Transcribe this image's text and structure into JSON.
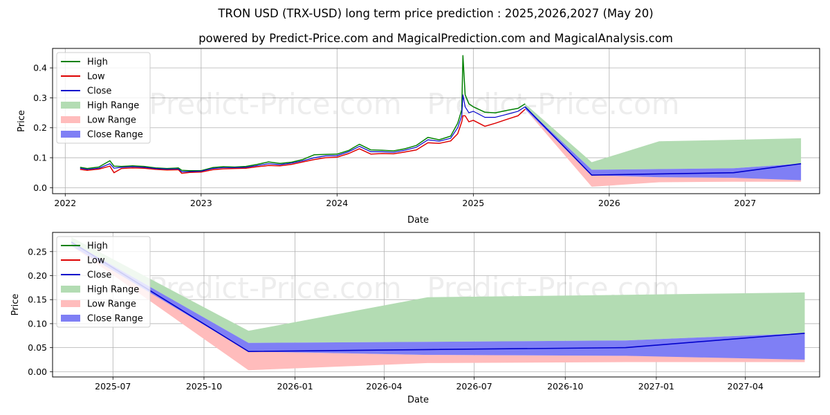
{
  "header": {
    "title": "TRON USD (TRX-USD) long term price prediction : 2025,2026,2027 (May 20)",
    "subtitle": "powered by Predict-Price.com and MagicalPrediction.com and MagicalAnalysis.com"
  },
  "watermark": "Predict-Price.com",
  "colors": {
    "high": "#008000",
    "low": "#dd0000",
    "close": "#0000cc",
    "high_range": "#b3dcb3",
    "low_range": "#ffbcbc",
    "close_range": "#7f7ff5",
    "grid": "#b0b0b0"
  },
  "chart_data": [
    {
      "type": "line",
      "panel": "top",
      "xlabel": "Date",
      "ylabel": "Price",
      "xlim": [
        "2021-11-28",
        "2027-07-20"
      ],
      "ylim": [
        -0.02,
        0.465
      ],
      "x_ticks": [
        "2022-01-01",
        "2023-01-01",
        "2024-01-01",
        "2025-01-01",
        "2026-01-01",
        "2027-01-01"
      ],
      "x_tick_labels": [
        "2022",
        "2023",
        "2024",
        "2025",
        "2026",
        "2027"
      ],
      "y_ticks": [
        0.0,
        0.1,
        0.2,
        0.3,
        0.4
      ],
      "y_tick_labels": [
        "0.0",
        "0.1",
        "0.2",
        "0.3",
        "0.4"
      ],
      "grid": true,
      "legend": "upper-left",
      "legend_entries": [
        "High",
        "Low",
        "Close",
        "High Range",
        "Low Range",
        "Close Range"
      ],
      "history": {
        "dates": [
          "2022-02-10",
          "2022-03-01",
          "2022-04-01",
          "2022-05-01",
          "2022-05-12",
          "2022-06-01",
          "2022-07-01",
          "2022-08-01",
          "2022-09-01",
          "2022-10-01",
          "2022-11-01",
          "2022-11-10",
          "2022-12-01",
          "2023-01-01",
          "2023-02-01",
          "2023-03-01",
          "2023-04-01",
          "2023-05-01",
          "2023-06-01",
          "2023-07-01",
          "2023-08-01",
          "2023-09-01",
          "2023-10-01",
          "2023-11-01",
          "2023-12-01",
          "2024-01-01",
          "2024-02-01",
          "2024-03-01",
          "2024-04-01",
          "2024-05-01",
          "2024-06-01",
          "2024-07-01",
          "2024-08-01",
          "2024-09-01",
          "2024-10-01",
          "2024-11-01",
          "2024-11-20",
          "2024-12-01",
          "2024-12-04",
          "2024-12-10",
          "2024-12-20",
          "2025-01-01",
          "2025-02-01",
          "2025-03-01",
          "2025-04-01",
          "2025-05-01",
          "2025-05-20"
        ],
        "close": [
          0.065,
          0.061,
          0.065,
          0.08,
          0.065,
          0.068,
          0.07,
          0.068,
          0.064,
          0.062,
          0.063,
          0.053,
          0.054,
          0.055,
          0.064,
          0.067,
          0.067,
          0.068,
          0.074,
          0.08,
          0.077,
          0.082,
          0.09,
          0.1,
          0.106,
          0.107,
          0.12,
          0.138,
          0.12,
          0.12,
          0.118,
          0.125,
          0.135,
          0.16,
          0.155,
          0.165,
          0.2,
          0.24,
          0.31,
          0.27,
          0.25,
          0.255,
          0.235,
          0.235,
          0.245,
          0.255,
          0.27
        ],
        "high": [
          0.068,
          0.064,
          0.069,
          0.09,
          0.072,
          0.071,
          0.073,
          0.071,
          0.066,
          0.064,
          0.066,
          0.058,
          0.057,
          0.057,
          0.067,
          0.07,
          0.069,
          0.071,
          0.078,
          0.086,
          0.081,
          0.085,
          0.094,
          0.11,
          0.111,
          0.112,
          0.124,
          0.145,
          0.126,
          0.125,
          0.123,
          0.13,
          0.141,
          0.168,
          0.16,
          0.172,
          0.215,
          0.26,
          0.441,
          0.31,
          0.28,
          0.27,
          0.252,
          0.25,
          0.258,
          0.265,
          0.28
        ],
        "low": [
          0.061,
          0.058,
          0.062,
          0.072,
          0.05,
          0.064,
          0.066,
          0.065,
          0.061,
          0.059,
          0.06,
          0.048,
          0.051,
          0.052,
          0.06,
          0.063,
          0.064,
          0.065,
          0.07,
          0.074,
          0.073,
          0.078,
          0.086,
          0.094,
          0.1,
          0.102,
          0.114,
          0.13,
          0.112,
          0.114,
          0.113,
          0.119,
          0.126,
          0.15,
          0.148,
          0.156,
          0.18,
          0.22,
          0.24,
          0.24,
          0.22,
          0.225,
          0.205,
          0.215,
          0.228,
          0.24,
          0.262
        ]
      },
      "forecast": {
        "dates": [
          "2025-05-20",
          "2025-11-15",
          "2026-05-15",
          "2026-12-01",
          "2027-05-31"
        ],
        "close": [
          0.27,
          0.042,
          0.046,
          0.05,
          0.08
        ],
        "high_range": {
          "upper": [
            0.28,
            0.085,
            0.155,
            0.16,
            0.165
          ],
          "lower": [
            0.27,
            0.06,
            0.062,
            0.065,
            0.08
          ]
        },
        "low_range": {
          "upper": [
            0.262,
            0.042,
            0.035,
            0.033,
            0.028
          ],
          "lower": [
            0.262,
            0.003,
            0.018,
            0.02,
            0.02
          ]
        },
        "close_range": {
          "upper": [
            0.27,
            0.06,
            0.062,
            0.065,
            0.08
          ],
          "lower": [
            0.262,
            0.042,
            0.035,
            0.033,
            0.025
          ]
        }
      }
    },
    {
      "type": "line",
      "panel": "bottom",
      "xlabel": "Date",
      "ylabel": "Price",
      "xlim": [
        "2025-05-01",
        "2027-06-15"
      ],
      "ylim": [
        -0.011,
        0.29
      ],
      "x_ticks": [
        "2025-07-01",
        "2025-10-01",
        "2026-01-01",
        "2026-04-01",
        "2026-07-01",
        "2026-10-01",
        "2027-01-01",
        "2027-04-01"
      ],
      "x_tick_labels": [
        "2025-07",
        "2025-10",
        "2026-01",
        "2026-04",
        "2026-07",
        "2026-10",
        "2027-01",
        "2027-04"
      ],
      "y_ticks": [
        0.0,
        0.05,
        0.1,
        0.15,
        0.2,
        0.25
      ],
      "y_tick_labels": [
        "0.00",
        "0.05",
        "0.10",
        "0.15",
        "0.20",
        "0.25"
      ],
      "grid": true,
      "legend": "upper-left",
      "legend_entries": [
        "High",
        "Low",
        "Close",
        "High Range",
        "Low Range",
        "Close Range"
      ],
      "forecast_ref": "top"
    }
  ]
}
